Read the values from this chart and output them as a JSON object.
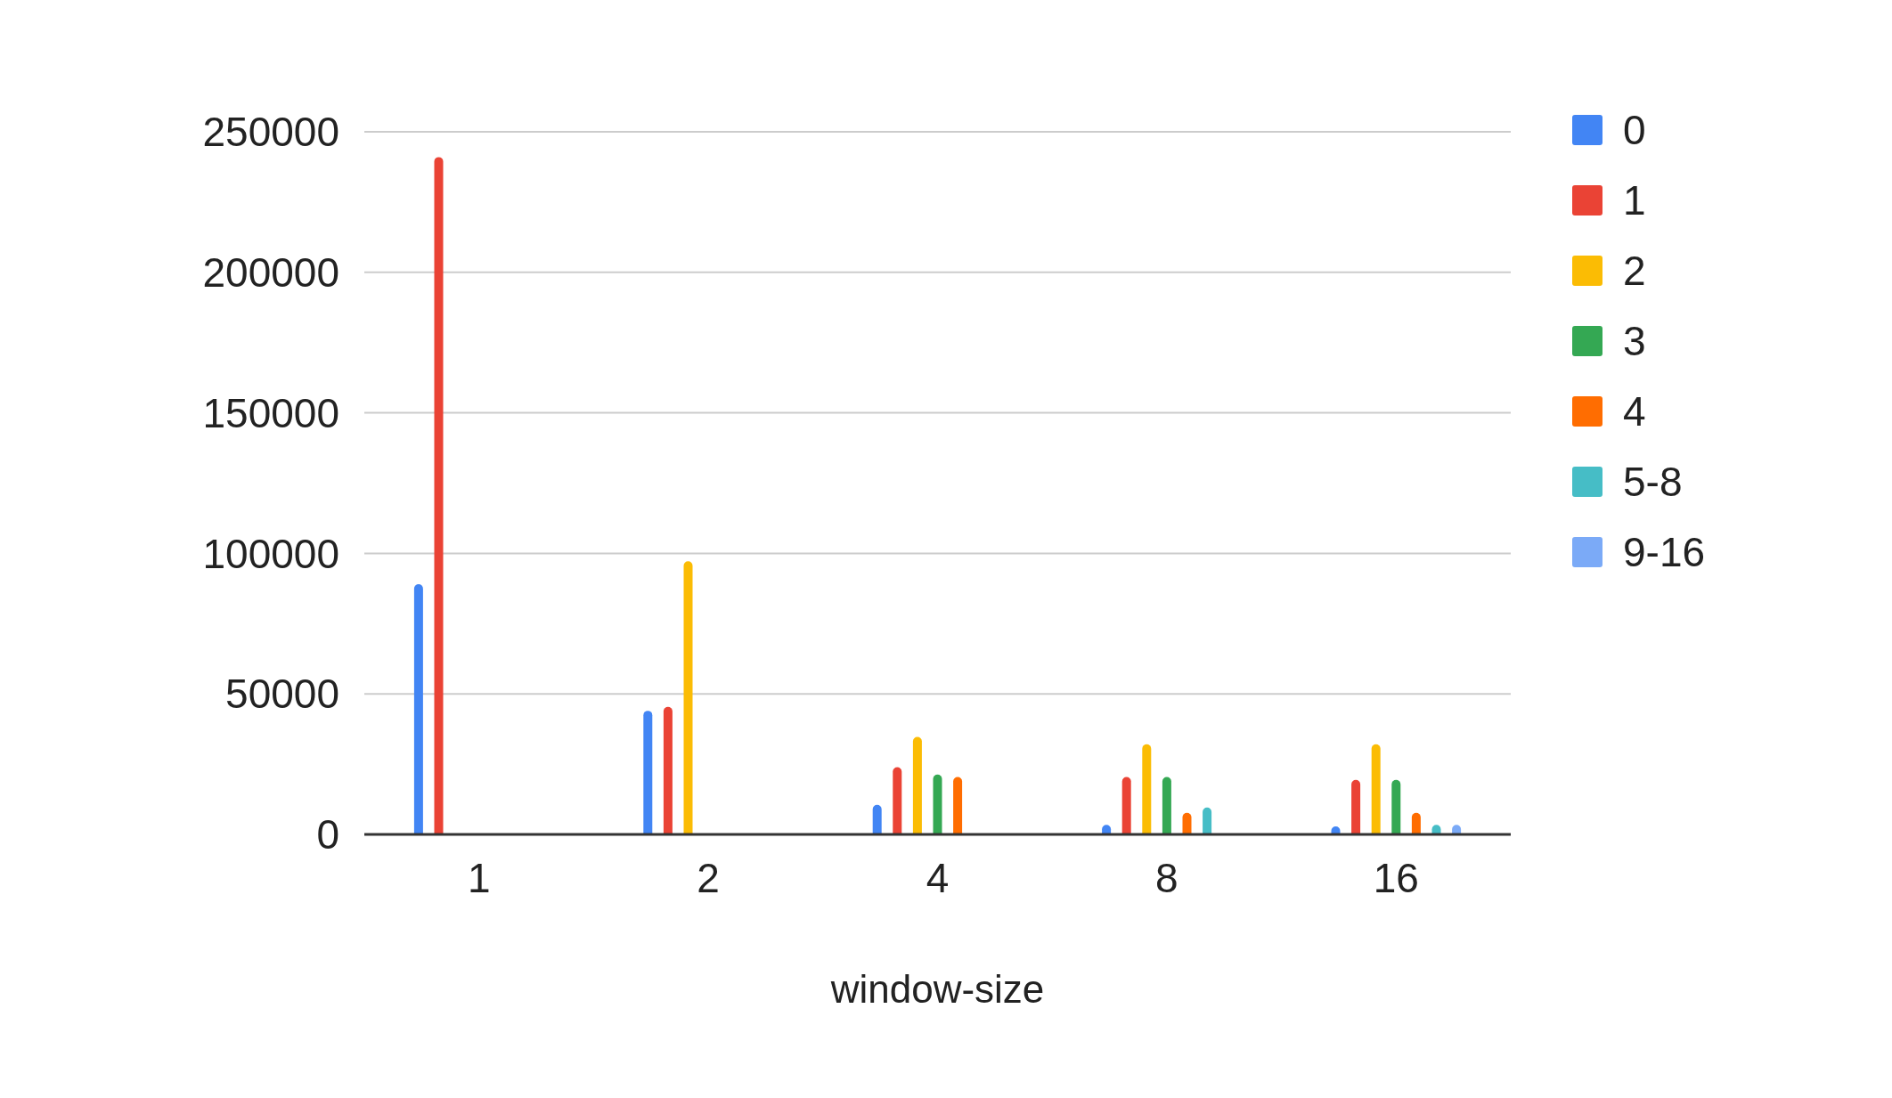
{
  "chart_data": {
    "type": "bar",
    "xlabel": "window-size",
    "categories": [
      "1",
      "2",
      "4",
      "8",
      "16"
    ],
    "series": [
      {
        "name": "0",
        "color": "#4285f4",
        "values": [
          89000,
          44000,
          10500,
          3400,
          2500
        ]
      },
      {
        "name": "1",
        "color": "#ea4335",
        "values": [
          241000,
          45400,
          23900,
          20400,
          19400
        ]
      },
      {
        "name": "2",
        "color": "#fbbc04",
        "values": [
          null,
          97200,
          34700,
          32100,
          32100
        ]
      },
      {
        "name": "3",
        "color": "#34a853",
        "values": [
          null,
          null,
          21300,
          20400,
          19400
        ]
      },
      {
        "name": "4",
        "color": "#ff6d01",
        "values": [
          null,
          null,
          20400,
          7700,
          7700
        ]
      },
      {
        "name": "5-8",
        "color": "#46bdc6",
        "values": [
          null,
          null,
          null,
          9600,
          3400
        ]
      },
      {
        "name": "9-16",
        "color": "#7baaf7",
        "values": [
          null,
          null,
          null,
          null,
          3400
        ]
      }
    ],
    "ylim": [
      0,
      250000
    ],
    "yticks": [
      0,
      50000,
      100000,
      150000,
      200000,
      250000
    ],
    "grid": "y",
    "legend": "right"
  }
}
